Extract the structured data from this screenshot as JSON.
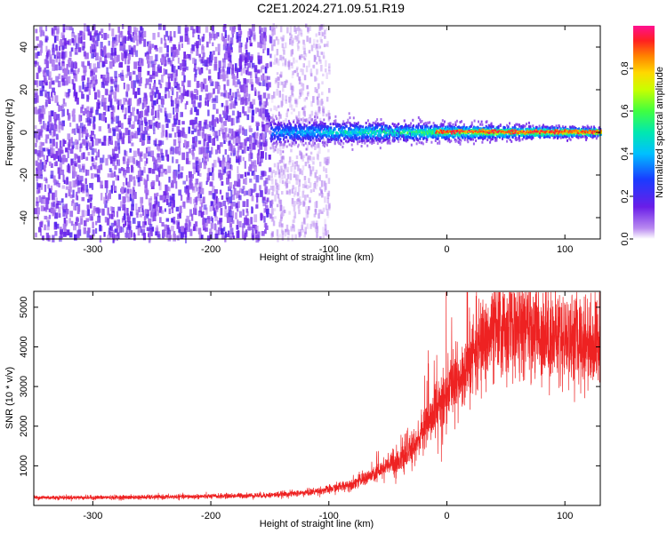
{
  "title": "C2E1.2024.271.09.51.R19",
  "colors": {
    "snr_line": "#ee2222",
    "frame": "#000000",
    "noise_purple": "#6a1ee8"
  },
  "chart_data": [
    {
      "type": "heatmap",
      "title": "C2E1.2024.271.09.51.R19",
      "xlabel": "Height of straight line (km)",
      "ylabel": "Frequency (Hz)",
      "xlim": [
        -350,
        130
      ],
      "ylim": [
        -50,
        50
      ],
      "x_ticks": [
        -300,
        -200,
        -100,
        0,
        100
      ],
      "y_ticks": [
        -40,
        -20,
        0,
        20,
        40
      ],
      "colorbar": {
        "label": "Normalized spectral amplitude",
        "range": [
          0,
          1
        ],
        "ticks": [
          "0.0",
          "0.2",
          "0.4",
          "0.6",
          "0.8"
        ]
      },
      "regions": [
        {
          "name": "broadband noise",
          "x_range": [
            -350,
            -150
          ],
          "freq_range": [
            -50,
            50
          ],
          "amplitude": 0.12
        },
        {
          "name": "faint noise",
          "x_range": [
            -150,
            -100
          ],
          "freq_range": [
            -50,
            50
          ],
          "amplitude": 0.05
        },
        {
          "name": "narrow carrier",
          "x_range": [
            -150,
            130
          ],
          "freq_center": 0,
          "half_width_start": 6,
          "half_width_end": 2,
          "amplitude_start": 0.4,
          "amplitude_end": 0.95
        }
      ]
    },
    {
      "type": "line",
      "xlabel": "Height of straight line (km)",
      "ylabel": "SNR (10 * v/v)",
      "xlim": [
        -350,
        130
      ],
      "ylim": [
        0,
        5400
      ],
      "x_ticks": [
        -300,
        -200,
        -100,
        0,
        100
      ],
      "y_ticks": [
        1000,
        2000,
        3000,
        4000,
        5000
      ],
      "x": [
        -350,
        -300,
        -250,
        -200,
        -150,
        -120,
        -100,
        -80,
        -60,
        -50,
        -40,
        -30,
        -20,
        -10,
        0,
        10,
        20,
        30,
        40,
        50,
        60,
        70,
        80,
        90,
        100,
        110,
        120,
        130
      ],
      "values": [
        200,
        200,
        210,
        230,
        260,
        320,
        400,
        550,
        800,
        1000,
        1150,
        1400,
        1900,
        2400,
        2800,
        3200,
        3700,
        4100,
        4350,
        4500,
        4500,
        4450,
        4400,
        4300,
        4250,
        4200,
        4150,
        4100
      ]
    }
  ]
}
